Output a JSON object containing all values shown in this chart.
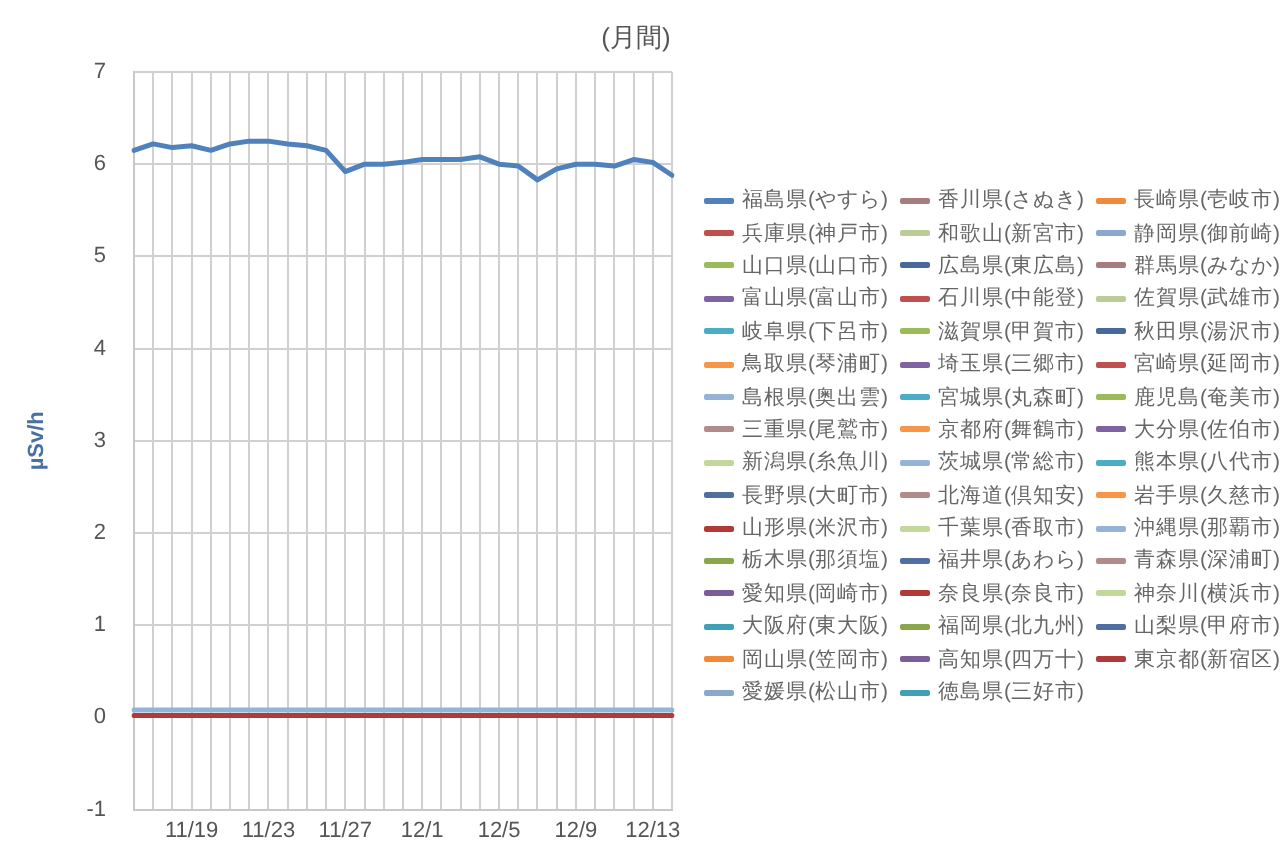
{
  "chart_data": {
    "type": "line",
    "title": "(月間)",
    "ylabel": "µSv/h",
    "categories": [
      null,
      null,
      null,
      "11/19",
      null,
      null,
      null,
      "11/23",
      null,
      null,
      null,
      "11/27",
      null,
      null,
      null,
      "12/1",
      null,
      null,
      null,
      "12/5",
      null,
      null,
      null,
      "12/9",
      null,
      null,
      null,
      "12/13",
      null
    ],
    "ylim": [
      -1,
      7
    ],
    "yticks": [
      -1,
      0,
      1,
      2,
      3,
      4,
      5,
      6,
      7
    ],
    "grid": true,
    "legend": "right",
    "marker": "none",
    "line_style": "solid",
    "series": [
      {
        "name": "福島県(やすら)",
        "color": "#4f81bd",
        "values": [
          6.15,
          6.22,
          6.18,
          6.2,
          6.15,
          6.22,
          6.25,
          6.25,
          6.22,
          6.2,
          6.15,
          5.92,
          6.0,
          6.0,
          6.02,
          6.05,
          6.05,
          6.05,
          6.08,
          6.0,
          5.98,
          5.83,
          5.95,
          6.0,
          6.0,
          5.98,
          6.05,
          6.02,
          5.88
        ]
      },
      {
        "name": "兵庫県(神戸市)",
        "color": "#c0504d",
        "values": [
          null,
          null,
          null,
          null,
          null,
          null,
          null,
          null,
          null,
          null,
          null,
          null,
          null,
          null,
          null,
          null,
          null,
          null,
          null,
          null,
          null,
          null,
          null,
          null,
          null,
          null,
          null,
          null,
          null
        ]
      },
      {
        "name": "山口県(山口市)",
        "color": "#9bbb59",
        "values": [
          null,
          null,
          null,
          null,
          null,
          null,
          null,
          null,
          null,
          null,
          null,
          null,
          null,
          null,
          null,
          null,
          null,
          null,
          null,
          null,
          null,
          null,
          null,
          null,
          null,
          null,
          null,
          null,
          null
        ]
      },
      {
        "name": "富山県(富山市)",
        "color": "#8064a2",
        "values": [
          null,
          null,
          null,
          null,
          null,
          null,
          null,
          null,
          null,
          null,
          null,
          null,
          null,
          null,
          null,
          null,
          null,
          null,
          null,
          null,
          null,
          null,
          null,
          null,
          null,
          null,
          null,
          null,
          null
        ]
      },
      {
        "name": "岐阜県(下呂市)",
        "color": "#4bacc6",
        "values": [
          null,
          null,
          null,
          null,
          null,
          null,
          null,
          null,
          null,
          null,
          null,
          null,
          null,
          null,
          null,
          null,
          null,
          null,
          null,
          null,
          null,
          null,
          null,
          null,
          null,
          null,
          null,
          null,
          null
        ]
      },
      {
        "name": "鳥取県(琴浦町)",
        "color": "#f79646",
        "values": [
          null,
          null,
          null,
          null,
          null,
          null,
          null,
          null,
          null,
          null,
          null,
          null,
          null,
          null,
          null,
          null,
          null,
          null,
          null,
          null,
          null,
          null,
          null,
          null,
          null,
          null,
          null,
          null,
          null
        ]
      },
      {
        "name": "島根県(奥出雲)",
        "color": "#95b3d7",
        "values": [
          null,
          null,
          null,
          null,
          null,
          null,
          null,
          null,
          null,
          null,
          null,
          null,
          null,
          null,
          null,
          null,
          null,
          null,
          null,
          null,
          null,
          null,
          null,
          null,
          null,
          null,
          null,
          null,
          null
        ]
      },
      {
        "name": "三重県(尾鷲市)",
        "color": "#b38a8a",
        "values": [
          null,
          null,
          null,
          null,
          null,
          null,
          null,
          null,
          null,
          null,
          null,
          null,
          null,
          null,
          null,
          null,
          null,
          null,
          null,
          null,
          null,
          null,
          null,
          null,
          null,
          null,
          null,
          null,
          null
        ]
      },
      {
        "name": "新潟県(糸魚川)",
        "color": "#c4d79b",
        "values": [
          null,
          null,
          null,
          null,
          null,
          null,
          null,
          null,
          null,
          null,
          null,
          null,
          null,
          null,
          null,
          null,
          null,
          null,
          null,
          null,
          null,
          null,
          null,
          null,
          null,
          null,
          null,
          null,
          null
        ]
      },
      {
        "name": "長野県(大町市)",
        "color": "#4f6fa0",
        "values": [
          null,
          null,
          null,
          null,
          null,
          null,
          null,
          null,
          null,
          null,
          null,
          null,
          null,
          null,
          null,
          null,
          null,
          null,
          null,
          null,
          null,
          null,
          null,
          null,
          null,
          null,
          null,
          null,
          null
        ]
      },
      {
        "name": "山形県(米沢市)",
        "color": "#b03a38",
        "values": [
          null,
          null,
          null,
          null,
          null,
          null,
          null,
          null,
          null,
          null,
          null,
          null,
          null,
          null,
          null,
          null,
          null,
          null,
          null,
          null,
          null,
          null,
          null,
          null,
          null,
          null,
          null,
          null,
          null
        ]
      },
      {
        "name": "栃木県(那須塩)",
        "color": "#8aa64a",
        "values": [
          null,
          null,
          null,
          null,
          null,
          null,
          null,
          null,
          null,
          null,
          null,
          null,
          null,
          null,
          null,
          null,
          null,
          null,
          null,
          null,
          null,
          null,
          null,
          null,
          null,
          null,
          null,
          null,
          null
        ]
      },
      {
        "name": "愛知県(岡崎市)",
        "color": "#7a5e9a",
        "values": [
          null,
          null,
          null,
          null,
          null,
          null,
          null,
          null,
          null,
          null,
          null,
          null,
          null,
          null,
          null,
          null,
          null,
          null,
          null,
          null,
          null,
          null,
          null,
          null,
          null,
          null,
          null,
          null,
          null
        ]
      },
      {
        "name": "大阪府(東大阪)",
        "color": "#3fa0b8",
        "values": [
          null,
          null,
          null,
          null,
          null,
          null,
          null,
          null,
          null,
          null,
          null,
          null,
          null,
          null,
          null,
          null,
          null,
          null,
          null,
          null,
          null,
          null,
          null,
          null,
          null,
          null,
          null,
          null,
          null
        ]
      },
      {
        "name": "岡山県(笠岡市)",
        "color": "#f08a3a",
        "values": [
          null,
          null,
          null,
          null,
          null,
          null,
          null,
          null,
          null,
          null,
          null,
          null,
          null,
          null,
          null,
          null,
          null,
          null,
          null,
          null,
          null,
          null,
          null,
          null,
          null,
          null,
          null,
          null,
          null
        ]
      },
      {
        "name": "愛媛県(松山市)",
        "color": "#8aa8cc",
        "values": [
          null,
          null,
          null,
          null,
          null,
          null,
          null,
          null,
          null,
          null,
          null,
          null,
          null,
          null,
          null,
          null,
          null,
          null,
          null,
          null,
          null,
          null,
          null,
          null,
          null,
          null,
          null,
          null,
          null
        ]
      },
      {
        "name": "香川県(さぬき)",
        "color": "#a67c7c",
        "values": [
          null,
          null,
          null,
          null,
          null,
          null,
          null,
          null,
          null,
          null,
          null,
          null,
          null,
          null,
          null,
          null,
          null,
          null,
          null,
          null,
          null,
          null,
          null,
          null,
          null,
          null,
          null,
          null,
          null
        ]
      },
      {
        "name": "和歌山(新宮市)",
        "color": "#bccc98",
        "values": [
          null,
          null,
          null,
          null,
          null,
          null,
          null,
          null,
          null,
          null,
          null,
          null,
          null,
          null,
          null,
          null,
          null,
          null,
          null,
          null,
          null,
          null,
          null,
          null,
          null,
          null,
          null,
          null,
          null
        ]
      },
      {
        "name": "広島県(東広島)",
        "color": "#46699a",
        "values": [
          null,
          null,
          null,
          null,
          null,
          null,
          null,
          null,
          null,
          null,
          null,
          null,
          null,
          null,
          null,
          null,
          null,
          null,
          null,
          null,
          null,
          null,
          null,
          null,
          null,
          null,
          null,
          null,
          null
        ]
      },
      {
        "name": "石川県(中能登)",
        "color": "#c0504d",
        "values": [
          null,
          null,
          null,
          null,
          null,
          null,
          null,
          null,
          null,
          null,
          null,
          null,
          null,
          null,
          null,
          null,
          null,
          null,
          null,
          null,
          null,
          null,
          null,
          null,
          null,
          null,
          null,
          null,
          null
        ]
      },
      {
        "name": "滋賀県(甲賀市)",
        "color": "#9bbb59",
        "values": [
          null,
          null,
          null,
          null,
          null,
          null,
          null,
          null,
          null,
          null,
          null,
          null,
          null,
          null,
          null,
          null,
          null,
          null,
          null,
          null,
          null,
          null,
          null,
          null,
          null,
          null,
          null,
          null,
          null
        ]
      },
      {
        "name": "埼玉県(三郷市)",
        "color": "#8064a2",
        "values": [
          null,
          null,
          null,
          null,
          null,
          null,
          null,
          null,
          null,
          null,
          null,
          null,
          null,
          null,
          null,
          null,
          null,
          null,
          null,
          null,
          null,
          null,
          null,
          null,
          null,
          null,
          null,
          null,
          null
        ]
      },
      {
        "name": "宮城県(丸森町)",
        "color": "#4bacc6",
        "values": [
          null,
          null,
          null,
          null,
          null,
          null,
          null,
          null,
          null,
          null,
          null,
          null,
          null,
          null,
          null,
          null,
          null,
          null,
          null,
          null,
          null,
          null,
          null,
          null,
          null,
          null,
          null,
          null,
          null
        ]
      },
      {
        "name": "京都府(舞鶴市)",
        "color": "#f79646",
        "values": [
          null,
          null,
          null,
          null,
          null,
          null,
          null,
          null,
          null,
          null,
          null,
          null,
          null,
          null,
          null,
          null,
          null,
          null,
          null,
          null,
          null,
          null,
          null,
          null,
          null,
          null,
          null,
          null,
          null
        ]
      },
      {
        "name": "茨城県(常総市)",
        "color": "#95b3d7",
        "values": [
          null,
          null,
          null,
          null,
          null,
          null,
          null,
          null,
          null,
          null,
          null,
          null,
          null,
          null,
          null,
          null,
          null,
          null,
          null,
          null,
          null,
          null,
          null,
          null,
          null,
          null,
          null,
          null,
          null
        ]
      },
      {
        "name": "北海道(倶知安)",
        "color": "#b38a8a",
        "values": [
          null,
          null,
          null,
          null,
          null,
          null,
          null,
          null,
          null,
          null,
          null,
          null,
          null,
          null,
          null,
          null,
          null,
          null,
          null,
          null,
          null,
          null,
          null,
          null,
          null,
          null,
          null,
          null,
          null
        ]
      },
      {
        "name": "千葉県(香取市)",
        "color": "#c4d79b",
        "values": [
          null,
          null,
          null,
          null,
          null,
          null,
          null,
          null,
          null,
          null,
          null,
          null,
          null,
          null,
          null,
          null,
          null,
          null,
          null,
          null,
          null,
          null,
          null,
          null,
          null,
          null,
          null,
          null,
          null
        ]
      },
      {
        "name": "福井県(あわら)",
        "color": "#4f6fa0",
        "values": [
          null,
          null,
          null,
          null,
          null,
          null,
          null,
          null,
          null,
          null,
          null,
          null,
          null,
          null,
          null,
          null,
          null,
          null,
          null,
          null,
          null,
          null,
          null,
          null,
          null,
          null,
          null,
          null,
          null
        ]
      },
      {
        "name": "奈良県(奈良市)",
        "color": "#b03a38",
        "values": [
          null,
          null,
          null,
          null,
          null,
          null,
          null,
          null,
          null,
          null,
          null,
          null,
          null,
          null,
          null,
          null,
          null,
          null,
          null,
          null,
          null,
          null,
          null,
          null,
          null,
          null,
          null,
          null,
          null
        ]
      },
      {
        "name": "福岡県(北九州)",
        "color": "#8aa64a",
        "values": [
          null,
          null,
          null,
          null,
          null,
          null,
          null,
          null,
          null,
          null,
          null,
          null,
          null,
          null,
          null,
          null,
          null,
          null,
          null,
          null,
          null,
          null,
          null,
          null,
          null,
          null,
          null,
          null,
          null
        ]
      },
      {
        "name": "高知県(四万十)",
        "color": "#7a5e9a",
        "values": [
          null,
          null,
          null,
          null,
          null,
          null,
          null,
          null,
          null,
          null,
          null,
          null,
          null,
          null,
          null,
          null,
          null,
          null,
          null,
          null,
          null,
          null,
          null,
          null,
          null,
          null,
          null,
          null,
          null
        ]
      },
      {
        "name": "徳島県(三好市)",
        "color": "#3fa0b8",
        "values": [
          null,
          null,
          null,
          null,
          null,
          null,
          null,
          null,
          null,
          null,
          null,
          null,
          null,
          null,
          null,
          null,
          null,
          null,
          null,
          null,
          null,
          null,
          null,
          null,
          null,
          null,
          null,
          null,
          null
        ]
      },
      {
        "name": "長崎県(壱岐市)",
        "color": "#f08a3a",
        "values": [
          null,
          null,
          null,
          null,
          null,
          null,
          null,
          null,
          null,
          null,
          null,
          null,
          null,
          null,
          null,
          null,
          null,
          null,
          null,
          null,
          null,
          null,
          null,
          null,
          null,
          null,
          null,
          null,
          null
        ]
      },
      {
        "name": "静岡県(御前崎)",
        "color": "#8aa8cc",
        "values": [
          null,
          null,
          null,
          null,
          null,
          null,
          null,
          null,
          null,
          null,
          null,
          null,
          null,
          null,
          null,
          null,
          null,
          null,
          null,
          null,
          null,
          null,
          null,
          null,
          null,
          null,
          null,
          null,
          null
        ]
      },
      {
        "name": "群馬県(みなか)",
        "color": "#a67c7c",
        "values": [
          null,
          null,
          null,
          null,
          null,
          null,
          null,
          null,
          null,
          null,
          null,
          null,
          null,
          null,
          null,
          null,
          null,
          null,
          null,
          null,
          null,
          null,
          null,
          null,
          null,
          null,
          null,
          null,
          null
        ]
      },
      {
        "name": "佐賀県(武雄市)",
        "color": "#bccc98",
        "values": [
          null,
          null,
          null,
          null,
          null,
          null,
          null,
          null,
          null,
          null,
          null,
          null,
          null,
          null,
          null,
          null,
          null,
          null,
          null,
          null,
          null,
          null,
          null,
          null,
          null,
          null,
          null,
          null,
          null
        ]
      },
      {
        "name": "秋田県(湯沢市)",
        "color": "#46699a",
        "values": [
          null,
          null,
          null,
          null,
          null,
          null,
          null,
          null,
          null,
          null,
          null,
          null,
          null,
          null,
          null,
          null,
          null,
          null,
          null,
          null,
          null,
          null,
          null,
          null,
          null,
          null,
          null,
          null,
          null
        ]
      },
      {
        "name": "宮崎県(延岡市)",
        "color": "#c0504d",
        "values": [
          null,
          null,
          null,
          null,
          null,
          null,
          null,
          null,
          null,
          null,
          null,
          null,
          null,
          null,
          null,
          null,
          null,
          null,
          null,
          null,
          null,
          null,
          null,
          null,
          null,
          null,
          null,
          null,
          null
        ]
      },
      {
        "name": "鹿児島(奄美市)",
        "color": "#9bbb59",
        "values": [
          null,
          null,
          null,
          null,
          null,
          null,
          null,
          null,
          null,
          null,
          null,
          null,
          null,
          null,
          null,
          null,
          null,
          null,
          null,
          null,
          null,
          null,
          null,
          null,
          null,
          null,
          null,
          null,
          null
        ]
      },
      {
        "name": "大分県(佐伯市)",
        "color": "#8064a2",
        "values": [
          null,
          null,
          null,
          null,
          null,
          null,
          null,
          null,
          null,
          null,
          null,
          null,
          null,
          null,
          null,
          null,
          null,
          null,
          null,
          null,
          null,
          null,
          null,
          null,
          null,
          null,
          null,
          null,
          null
        ]
      },
      {
        "name": "熊本県(八代市)",
        "color": "#4bacc6",
        "values": [
          null,
          null,
          null,
          null,
          null,
          null,
          null,
          null,
          null,
          null,
          null,
          null,
          null,
          null,
          null,
          null,
          null,
          null,
          null,
          null,
          null,
          null,
          null,
          null,
          null,
          null,
          null,
          null,
          null
        ]
      },
      {
        "name": "岩手県(久慈市)",
        "color": "#f79646",
        "values": [
          null,
          null,
          null,
          null,
          null,
          null,
          null,
          null,
          null,
          null,
          null,
          null,
          null,
          null,
          null,
          null,
          null,
          null,
          null,
          null,
          null,
          null,
          null,
          null,
          null,
          null,
          null,
          null,
          null
        ]
      },
      {
        "name": "沖縄県(那覇市)",
        "color": "#95b3d7",
        "values": [
          0.08,
          0.08,
          0.08,
          0.08,
          0.08,
          0.08,
          0.08,
          0.08,
          0.08,
          0.08,
          0.08,
          0.08,
          0.08,
          0.08,
          0.08,
          0.08,
          0.08,
          0.08,
          0.08,
          0.08,
          0.08,
          0.08,
          0.08,
          0.08,
          0.08,
          0.08,
          0.08,
          0.08,
          0.08
        ]
      },
      {
        "name": "青森県(深浦町)",
        "color": "#b38a8a",
        "values": [
          null,
          null,
          null,
          null,
          null,
          null,
          null,
          null,
          null,
          null,
          null,
          null,
          null,
          null,
          null,
          null,
          null,
          null,
          null,
          null,
          null,
          null,
          null,
          null,
          null,
          null,
          null,
          null,
          null
        ]
      },
      {
        "name": "神奈川(横浜市)",
        "color": "#c4d79b",
        "values": [
          null,
          null,
          null,
          null,
          null,
          null,
          null,
          null,
          null,
          null,
          null,
          null,
          null,
          null,
          null,
          null,
          null,
          null,
          null,
          null,
          null,
          null,
          null,
          null,
          null,
          null,
          null,
          null,
          null
        ]
      },
      {
        "name": "山梨県(甲府市)",
        "color": "#4f6fa0",
        "values": [
          null,
          null,
          null,
          null,
          null,
          null,
          null,
          null,
          null,
          null,
          null,
          null,
          null,
          null,
          null,
          null,
          null,
          null,
          null,
          null,
          null,
          null,
          null,
          null,
          null,
          null,
          null,
          null,
          null
        ]
      },
      {
        "name": "東京都(新宿区)",
        "color": "#b03a38",
        "values": [
          0.02,
          0.02,
          0.02,
          0.02,
          0.02,
          0.02,
          0.02,
          0.02,
          0.02,
          0.02,
          0.02,
          0.02,
          0.02,
          0.02,
          0.02,
          0.02,
          0.02,
          0.02,
          0.02,
          0.02,
          0.02,
          0.02,
          0.02,
          0.02,
          0.02,
          0.02,
          0.02,
          0.02,
          0.02
        ]
      }
    ]
  }
}
